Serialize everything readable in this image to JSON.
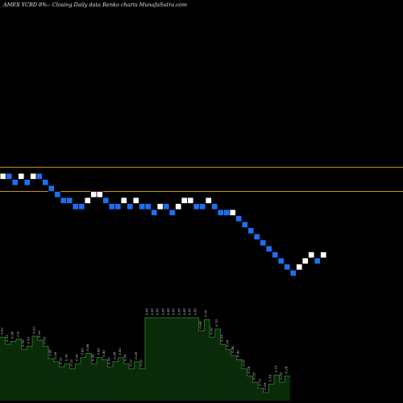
{
  "caption": "AMEX  YCBD 8%-- Closing Daily data Renko  charts MunafaSutra.com",
  "chart_data": {
    "type": "renko",
    "title": "AMEX  YCBD 8%-- Closing Daily data Renko  charts MunafaSutra.com",
    "xlabel": "",
    "ylabel": "",
    "grid": false,
    "legend": "none",
    "brick_step": 1,
    "levels_range": [
      0,
      12
    ],
    "brick_levels": [
      12,
      12,
      11,
      12,
      11,
      12,
      12,
      11,
      10,
      9,
      8,
      8,
      7,
      7,
      8,
      9,
      9,
      8,
      7,
      7,
      8,
      7,
      8,
      7,
      7,
      6,
      7,
      7,
      6,
      7,
      8,
      8,
      7,
      7,
      8,
      7,
      6,
      6,
      6,
      5,
      4,
      3,
      2,
      1,
      0,
      -1,
      -2,
      -3,
      -4,
      -3,
      -2,
      -1,
      -2,
      -1
    ],
    "brick_directions": [
      "up",
      "down",
      "down",
      "up",
      "down",
      "up",
      "down",
      "down",
      "down",
      "down",
      "down",
      "down",
      "down",
      "down",
      "up",
      "up",
      "up",
      "down",
      "down",
      "down",
      "up",
      "down",
      "up",
      "down",
      "down",
      "down",
      "up",
      "down",
      "down",
      "up",
      "up",
      "up",
      "down",
      "down",
      "up",
      "down",
      "down",
      "down",
      "up",
      "down",
      "down",
      "down",
      "down",
      "down",
      "down",
      "down",
      "down",
      "down",
      "down",
      "up",
      "up",
      "up",
      "down",
      "up"
    ],
    "reference_lines": [
      {
        "level": 12.5
      },
      {
        "level": 8.5
      }
    ],
    "volume_bars": [
      {
        "value": 0.62,
        "label": "0.62"
      },
      {
        "value": 0.55,
        "label": "0.55"
      },
      {
        "value": 0.58,
        "label": "0.58"
      },
      {
        "value": 0.6,
        "label": "0.6"
      },
      {
        "value": 0.5,
        "label": "0.50"
      },
      {
        "value": 0.53,
        "label": "0.53"
      },
      {
        "value": 0.63,
        "label": "0.63"
      },
      {
        "value": 0.59,
        "label": "0.59"
      },
      {
        "value": 0.53,
        "label": "0.53"
      },
      {
        "value": 0.41,
        "label": "0.41"
      },
      {
        "value": 0.38,
        "label": "0.38"
      },
      {
        "value": 0.33,
        "label": "0.33"
      },
      {
        "value": 0.36,
        "label": "0.36"
      },
      {
        "value": 0.31,
        "label": "0.31"
      },
      {
        "value": 0.36,
        "label": "0.36"
      },
      {
        "value": 0.42,
        "label": "0.42"
      },
      {
        "value": 0.46,
        "label": "0.46"
      },
      {
        "value": 0.36,
        "label": "0.36"
      },
      {
        "value": 0.42,
        "label": "0.42"
      },
      {
        "value": 0.4,
        "label": "0.40"
      },
      {
        "value": 0.33,
        "label": "0.33"
      },
      {
        "value": 0.38,
        "label": "0.38"
      },
      {
        "value": 0.42,
        "label": "0.42"
      },
      {
        "value": 0.36,
        "label": "0.36"
      },
      {
        "value": 0.31,
        "label": "0.31"
      },
      {
        "value": 0.38,
        "label": "0.38"
      },
      {
        "value": 0.31,
        "label": "0.31"
      },
      {
        "value": 0.81,
        "label": "0.81"
      },
      {
        "value": 0.81,
        "label": "0.81"
      },
      {
        "value": 0.81,
        "label": "0.81"
      },
      {
        "value": 0.81,
        "label": "0.81"
      },
      {
        "value": 0.81,
        "label": "0.81"
      },
      {
        "value": 0.81,
        "label": "0.81"
      },
      {
        "value": 0.81,
        "label": "0.81"
      },
      {
        "value": 0.81,
        "label": "0.81"
      },
      {
        "value": 0.81,
        "label": "0.81"
      },
      {
        "value": 0.81,
        "label": "0.81"
      },
      {
        "value": 0.68,
        "label": "0.68"
      },
      {
        "value": 0.79,
        "label": "0.79"
      },
      {
        "value": 0.62,
        "label": "0.62"
      },
      {
        "value": 0.7,
        "label": "0.70"
      },
      {
        "value": 0.55,
        "label": "0.55"
      },
      {
        "value": 0.5,
        "label": "0.50"
      },
      {
        "value": 0.44,
        "label": "0.44"
      },
      {
        "value": 0.4,
        "label": "0.40"
      },
      {
        "value": 0.31,
        "label": "0.31"
      },
      {
        "value": 0.24,
        "label": "0.24"
      },
      {
        "value": 0.18,
        "label": "0.18"
      },
      {
        "value": 0.12,
        "label": "0.12"
      },
      {
        "value": 0.08,
        "label": "0.08"
      },
      {
        "value": 0.16,
        "label": "0.16"
      },
      {
        "value": 0.25,
        "label": "0.25"
      },
      {
        "value": 0.18,
        "label": "0.18"
      },
      {
        "value": 0.24,
        "label": "0.24"
      }
    ],
    "volume_range": [
      0,
      1
    ],
    "colors": {
      "background": "#000000",
      "up_brick": "#ffffff",
      "down_brick": "#1e6ff0",
      "brick_edge": "#000000",
      "reference_line": "#c8901e",
      "volume_fill": "#0a2a0a",
      "volume_edge": "#2e8b2e",
      "text": "#e6e6e6"
    }
  }
}
